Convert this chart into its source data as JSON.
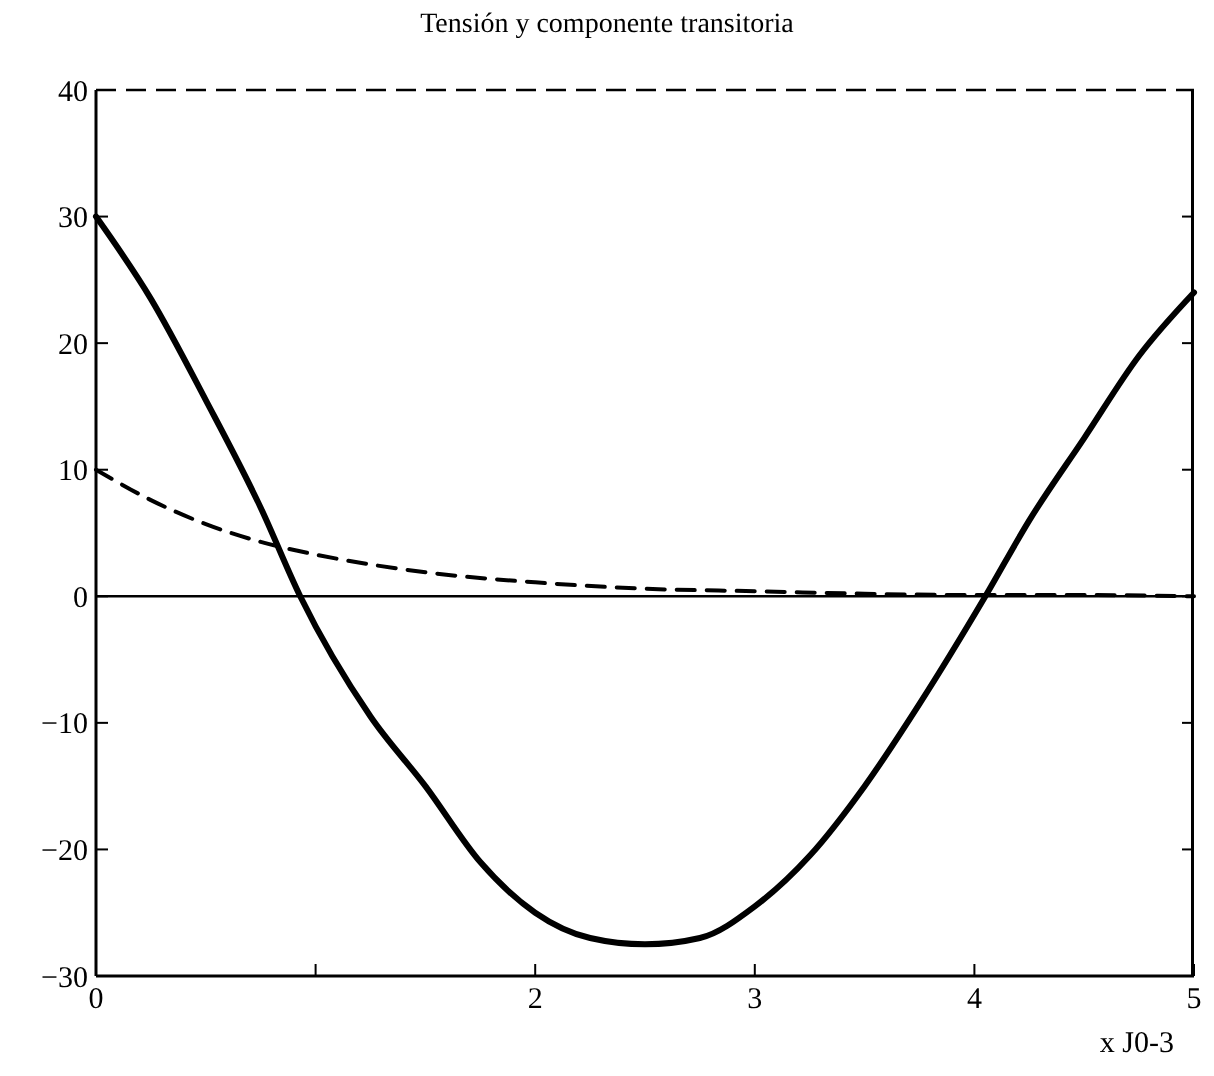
{
  "chart_data": {
    "type": "line",
    "title": "Tensión y componente transitoria",
    "xlabel": "x J0-3",
    "xlim": [
      0,
      5
    ],
    "xticks": [
      0,
      {
        "value": 1,
        "label": null
      },
      2,
      3,
      4,
      5
    ],
    "ylim": [
      -30,
      40
    ],
    "yticks": [
      -30,
      -20,
      -10,
      0,
      10,
      20,
      30,
      40
    ],
    "grid": false,
    "marker": "none",
    "ref_lines": [
      {
        "axis": "y",
        "value": 0,
        "color": "#000000",
        "line_style": "solid"
      }
    ],
    "series": [
      {
        "color": "#000000",
        "line_style": "solid",
        "x": [
          0,
          0.25,
          0.5,
          0.75,
          0.93,
          1.25,
          1.5,
          1.75,
          2,
          2.25,
          2.5,
          2.75,
          3,
          3.25,
          3.5,
          3.75,
          4.05,
          4.25,
          4.5,
          4.75,
          5
        ],
        "values": [
          30,
          23.5,
          15.5,
          7,
          0,
          -9.5,
          -15,
          -21,
          -25,
          -27,
          -27.5,
          -27,
          -24.5,
          -20.5,
          -15,
          -8.5,
          0,
          6,
          12.5,
          19,
          24
        ]
      },
      {
        "color": "#000000",
        "line_style": "dashed",
        "x": [
          0,
          0.25,
          0.5,
          0.75,
          1,
          1.5,
          2,
          2.5,
          3,
          3.5,
          4,
          4.5,
          5
        ],
        "values": [
          10,
          7.6,
          5.7,
          4.3,
          3.3,
          1.9,
          1.1,
          0.6,
          0.4,
          0.2,
          0.1,
          0.1,
          0
        ]
      }
    ]
  }
}
